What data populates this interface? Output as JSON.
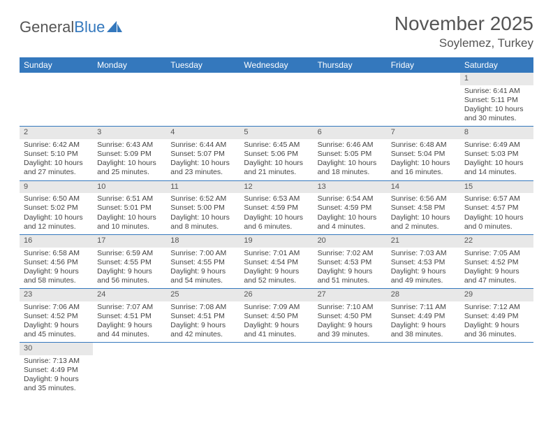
{
  "logo": {
    "text1": "General",
    "text2": "Blue"
  },
  "title": "November 2025",
  "location": "Soylemez, Turkey",
  "weekdays": [
    "Sunday",
    "Monday",
    "Tuesday",
    "Wednesday",
    "Thursday",
    "Friday",
    "Saturday"
  ],
  "colors": {
    "header_bg": "#3478bd",
    "header_text": "#ffffff",
    "daynum_bg": "#e8e8e8",
    "body_text": "#444444",
    "divider": "#3478bd",
    "logo_accent": "#3478bd"
  },
  "font": {
    "family": "Arial",
    "day_fontsize": 10.5,
    "title_fontsize": 28,
    "location_fontsize": 17,
    "weekday_fontsize": 12
  },
  "weeks": [
    [
      {
        "empty": true
      },
      {
        "empty": true
      },
      {
        "empty": true
      },
      {
        "empty": true
      },
      {
        "empty": true
      },
      {
        "empty": true
      },
      {
        "n": "1",
        "sr": "Sunrise: 6:41 AM",
        "ss": "Sunset: 5:11 PM",
        "dl": "Daylight: 10 hours and 30 minutes."
      }
    ],
    [
      {
        "n": "2",
        "sr": "Sunrise: 6:42 AM",
        "ss": "Sunset: 5:10 PM",
        "dl": "Daylight: 10 hours and 27 minutes."
      },
      {
        "n": "3",
        "sr": "Sunrise: 6:43 AM",
        "ss": "Sunset: 5:09 PM",
        "dl": "Daylight: 10 hours and 25 minutes."
      },
      {
        "n": "4",
        "sr": "Sunrise: 6:44 AM",
        "ss": "Sunset: 5:07 PM",
        "dl": "Daylight: 10 hours and 23 minutes."
      },
      {
        "n": "5",
        "sr": "Sunrise: 6:45 AM",
        "ss": "Sunset: 5:06 PM",
        "dl": "Daylight: 10 hours and 21 minutes."
      },
      {
        "n": "6",
        "sr": "Sunrise: 6:46 AM",
        "ss": "Sunset: 5:05 PM",
        "dl": "Daylight: 10 hours and 18 minutes."
      },
      {
        "n": "7",
        "sr": "Sunrise: 6:48 AM",
        "ss": "Sunset: 5:04 PM",
        "dl": "Daylight: 10 hours and 16 minutes."
      },
      {
        "n": "8",
        "sr": "Sunrise: 6:49 AM",
        "ss": "Sunset: 5:03 PM",
        "dl": "Daylight: 10 hours and 14 minutes."
      }
    ],
    [
      {
        "n": "9",
        "sr": "Sunrise: 6:50 AM",
        "ss": "Sunset: 5:02 PM",
        "dl": "Daylight: 10 hours and 12 minutes."
      },
      {
        "n": "10",
        "sr": "Sunrise: 6:51 AM",
        "ss": "Sunset: 5:01 PM",
        "dl": "Daylight: 10 hours and 10 minutes."
      },
      {
        "n": "11",
        "sr": "Sunrise: 6:52 AM",
        "ss": "Sunset: 5:00 PM",
        "dl": "Daylight: 10 hours and 8 minutes."
      },
      {
        "n": "12",
        "sr": "Sunrise: 6:53 AM",
        "ss": "Sunset: 4:59 PM",
        "dl": "Daylight: 10 hours and 6 minutes."
      },
      {
        "n": "13",
        "sr": "Sunrise: 6:54 AM",
        "ss": "Sunset: 4:59 PM",
        "dl": "Daylight: 10 hours and 4 minutes."
      },
      {
        "n": "14",
        "sr": "Sunrise: 6:56 AM",
        "ss": "Sunset: 4:58 PM",
        "dl": "Daylight: 10 hours and 2 minutes."
      },
      {
        "n": "15",
        "sr": "Sunrise: 6:57 AM",
        "ss": "Sunset: 4:57 PM",
        "dl": "Daylight: 10 hours and 0 minutes."
      }
    ],
    [
      {
        "n": "16",
        "sr": "Sunrise: 6:58 AM",
        "ss": "Sunset: 4:56 PM",
        "dl": "Daylight: 9 hours and 58 minutes."
      },
      {
        "n": "17",
        "sr": "Sunrise: 6:59 AM",
        "ss": "Sunset: 4:55 PM",
        "dl": "Daylight: 9 hours and 56 minutes."
      },
      {
        "n": "18",
        "sr": "Sunrise: 7:00 AM",
        "ss": "Sunset: 4:55 PM",
        "dl": "Daylight: 9 hours and 54 minutes."
      },
      {
        "n": "19",
        "sr": "Sunrise: 7:01 AM",
        "ss": "Sunset: 4:54 PM",
        "dl": "Daylight: 9 hours and 52 minutes."
      },
      {
        "n": "20",
        "sr": "Sunrise: 7:02 AM",
        "ss": "Sunset: 4:53 PM",
        "dl": "Daylight: 9 hours and 51 minutes."
      },
      {
        "n": "21",
        "sr": "Sunrise: 7:03 AM",
        "ss": "Sunset: 4:53 PM",
        "dl": "Daylight: 9 hours and 49 minutes."
      },
      {
        "n": "22",
        "sr": "Sunrise: 7:05 AM",
        "ss": "Sunset: 4:52 PM",
        "dl": "Daylight: 9 hours and 47 minutes."
      }
    ],
    [
      {
        "n": "23",
        "sr": "Sunrise: 7:06 AM",
        "ss": "Sunset: 4:52 PM",
        "dl": "Daylight: 9 hours and 45 minutes."
      },
      {
        "n": "24",
        "sr": "Sunrise: 7:07 AM",
        "ss": "Sunset: 4:51 PM",
        "dl": "Daylight: 9 hours and 44 minutes."
      },
      {
        "n": "25",
        "sr": "Sunrise: 7:08 AM",
        "ss": "Sunset: 4:51 PM",
        "dl": "Daylight: 9 hours and 42 minutes."
      },
      {
        "n": "26",
        "sr": "Sunrise: 7:09 AM",
        "ss": "Sunset: 4:50 PM",
        "dl": "Daylight: 9 hours and 41 minutes."
      },
      {
        "n": "27",
        "sr": "Sunrise: 7:10 AM",
        "ss": "Sunset: 4:50 PM",
        "dl": "Daylight: 9 hours and 39 minutes."
      },
      {
        "n": "28",
        "sr": "Sunrise: 7:11 AM",
        "ss": "Sunset: 4:49 PM",
        "dl": "Daylight: 9 hours and 38 minutes."
      },
      {
        "n": "29",
        "sr": "Sunrise: 7:12 AM",
        "ss": "Sunset: 4:49 PM",
        "dl": "Daylight: 9 hours and 36 minutes."
      }
    ],
    [
      {
        "n": "30",
        "sr": "Sunrise: 7:13 AM",
        "ss": "Sunset: 4:49 PM",
        "dl": "Daylight: 9 hours and 35 minutes."
      },
      {
        "empty": true
      },
      {
        "empty": true
      },
      {
        "empty": true
      },
      {
        "empty": true
      },
      {
        "empty": true
      },
      {
        "empty": true
      }
    ]
  ]
}
